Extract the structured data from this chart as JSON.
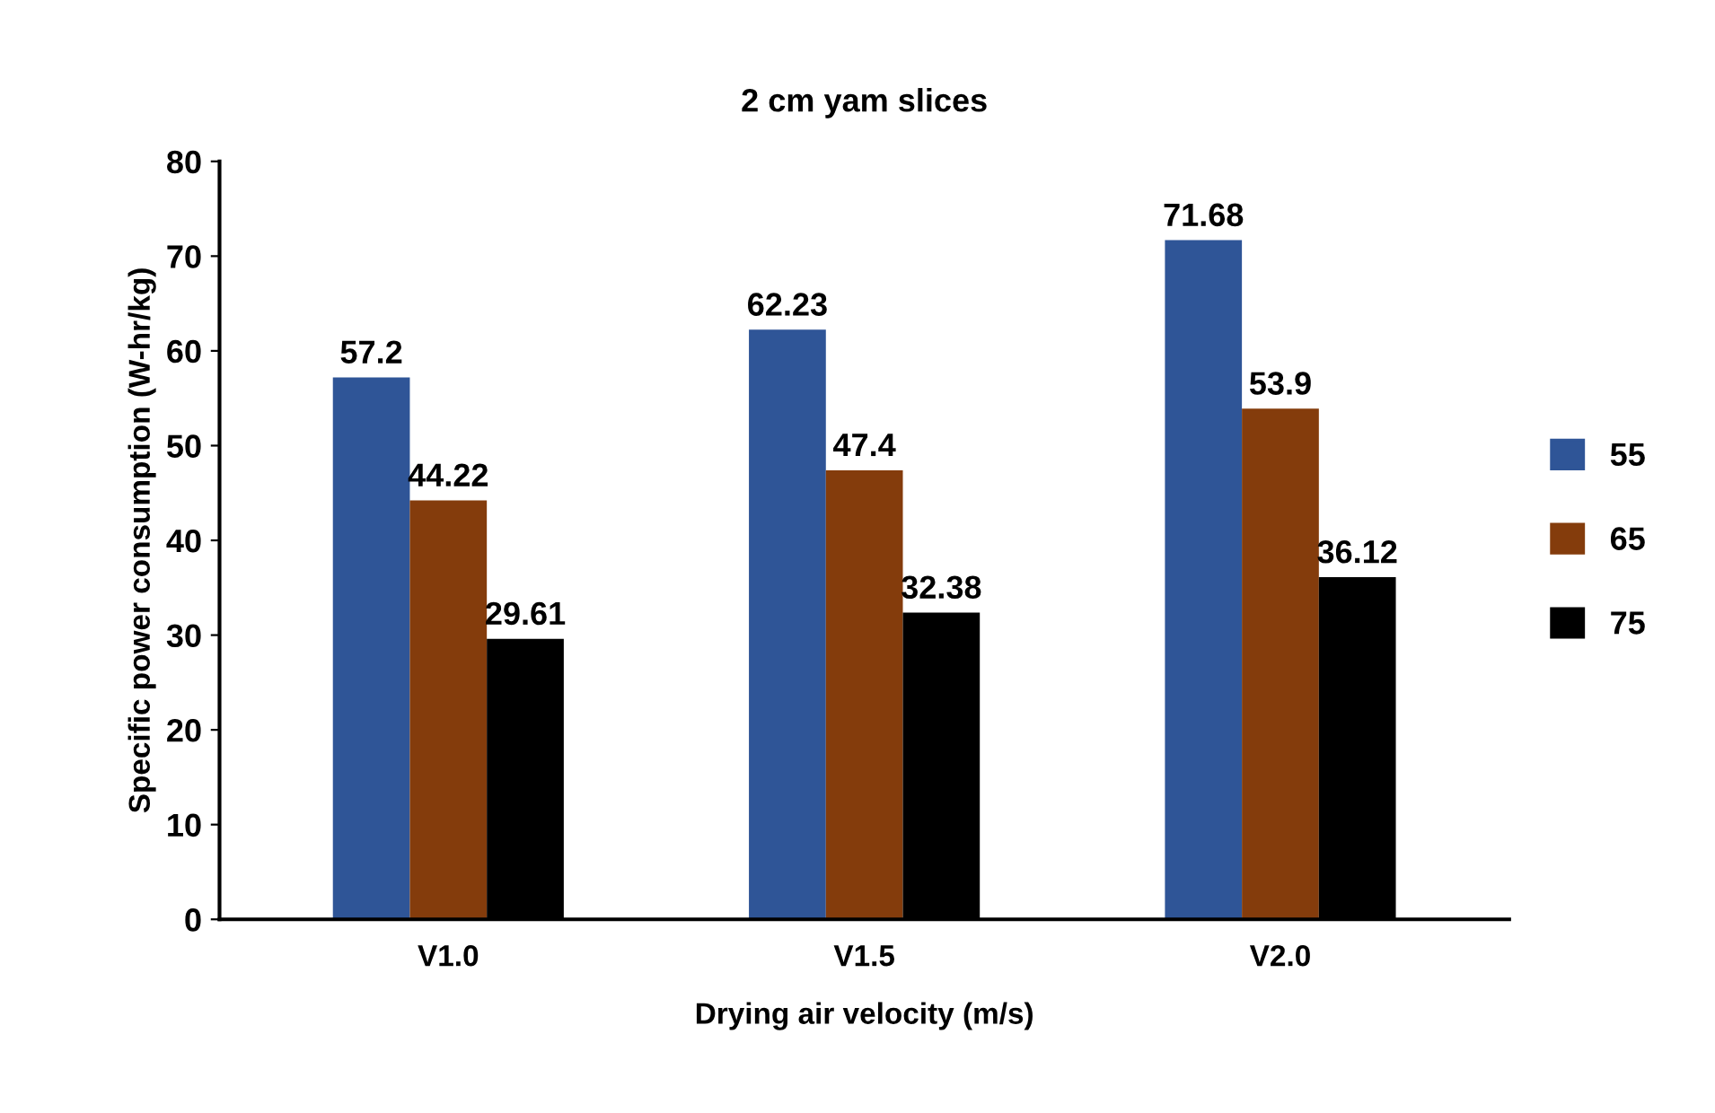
{
  "chart_data": {
    "type": "bar",
    "title": "2 cm yam slices",
    "xlabel": "Drying air velocity (m/s)",
    "ylabel": "Specific power consumption (W-hr/kg)",
    "categories": [
      "V1.0",
      "V1.5",
      "V2.0"
    ],
    "series": [
      {
        "name": "55",
        "color": "#2f5597",
        "values": [
          57.2,
          62.23,
          71.68
        ]
      },
      {
        "name": "65",
        "color": "#843c0c",
        "values": [
          44.22,
          47.4,
          53.9
        ]
      },
      {
        "name": "75",
        "color": "#000000",
        "values": [
          29.61,
          32.38,
          36.12
        ]
      }
    ],
    "ylim": [
      0,
      80
    ],
    "yticks": [
      0,
      10,
      20,
      30,
      40,
      50,
      60,
      70,
      80
    ],
    "grid": false,
    "legend": "right",
    "data_labels": true
  }
}
